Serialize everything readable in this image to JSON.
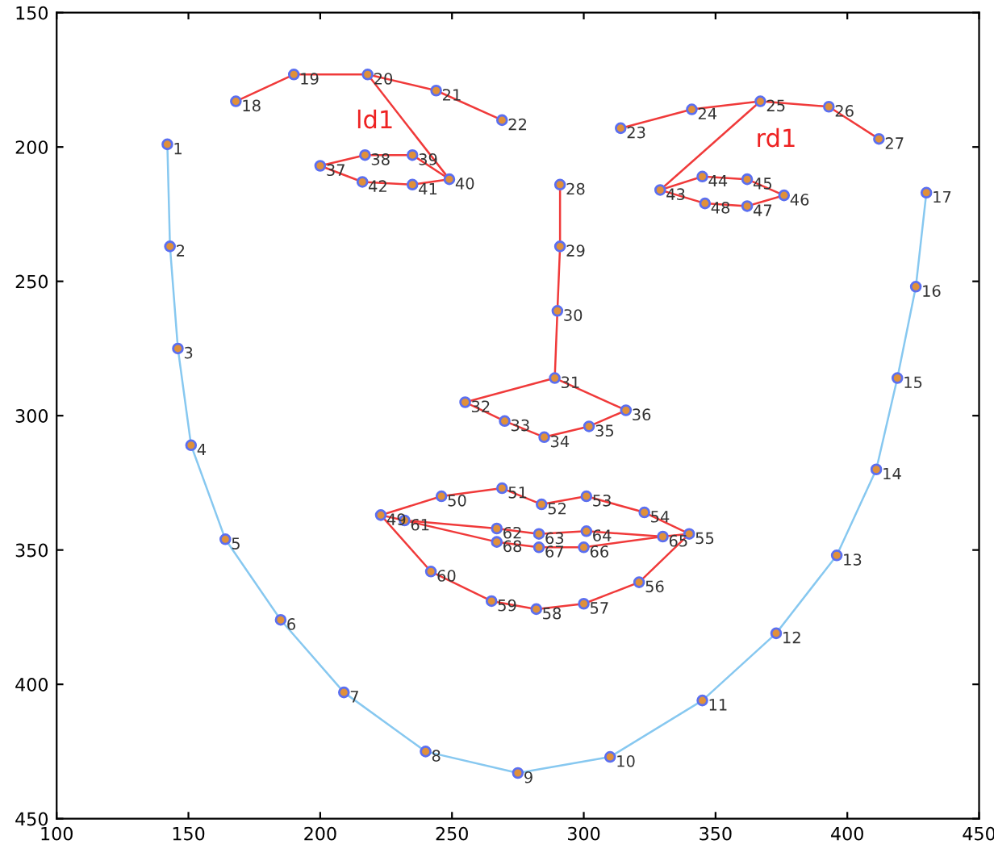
{
  "chart_data": {
    "type": "scatter",
    "xlim": [
      100,
      450
    ],
    "xticks": [
      100,
      150,
      200,
      250,
      300,
      350,
      400,
      450
    ],
    "ylim": [
      450,
      150
    ],
    "yticks": [
      150,
      200,
      250,
      300,
      350,
      400,
      450
    ],
    "grid": false,
    "annotations": [
      "ld1",
      "rd1",
      {
        "text": "1",
        "x": 142,
        "y": 199
      },
      {
        "text": "2",
        "x": 143,
        "y": 237
      },
      {
        "text": "3",
        "x": 146,
        "y": 275
      },
      {
        "text": "4",
        "x": 151,
        "y": 311
      },
      {
        "text": "5",
        "x": 164,
        "y": 346
      },
      {
        "text": "6",
        "x": 185,
        "y": 376
      },
      {
        "text": "7",
        "x": 209,
        "y": 403
      },
      {
        "text": "8",
        "x": 240,
        "y": 425
      },
      {
        "text": "9",
        "x": 275,
        "y": 433
      },
      {
        "text": "10",
        "x": 310,
        "y": 427
      },
      {
        "text": "11",
        "x": 345,
        "y": 406
      },
      {
        "text": "12",
        "x": 373,
        "y": 381
      },
      {
        "text": "13",
        "x": 396,
        "y": 352
      },
      {
        "text": "14",
        "x": 411,
        "y": 320
      },
      {
        "text": "15",
        "x": 419,
        "y": 286
      },
      {
        "text": "16",
        "x": 426,
        "y": 252
      },
      {
        "text": "17",
        "x": 430,
        "y": 217
      },
      {
        "text": "18",
        "x": 168,
        "y": 183
      },
      {
        "text": "19",
        "x": 190,
        "y": 173
      },
      {
        "text": "20",
        "x": 218,
        "y": 173
      },
      {
        "text": "21",
        "x": 244,
        "y": 179
      },
      {
        "text": "22",
        "x": 269,
        "y": 190
      },
      {
        "text": "23",
        "x": 314,
        "y": 193
      },
      {
        "text": "24",
        "x": 341,
        "y": 186
      },
      {
        "text": "25",
        "x": 367,
        "y": 183
      },
      {
        "text": "26",
        "x": 393,
        "y": 185
      },
      {
        "text": "27",
        "x": 412,
        "y": 197
      },
      {
        "text": "28",
        "x": 291,
        "y": 214
      },
      {
        "text": "29",
        "x": 291,
        "y": 237
      },
      {
        "text": "30",
        "x": 290,
        "y": 261
      },
      {
        "text": "31",
        "x": 289,
        "y": 286
      },
      {
        "text": "32",
        "x": 255,
        "y": 295
      },
      {
        "text": "33",
        "x": 270,
        "y": 302
      },
      {
        "text": "34",
        "x": 285,
        "y": 308
      },
      {
        "text": "35",
        "x": 302,
        "y": 304
      },
      {
        "text": "36",
        "x": 316,
        "y": 298
      },
      {
        "text": "37",
        "x": 200,
        "y": 207
      },
      {
        "text": "38",
        "x": 217,
        "y": 203
      },
      {
        "text": "39",
        "x": 235,
        "y": 203
      },
      {
        "text": "40",
        "x": 249,
        "y": 212
      },
      {
        "text": "41",
        "x": 235,
        "y": 214
      },
      {
        "text": "42",
        "x": 216,
        "y": 213
      },
      {
        "text": "43",
        "x": 329,
        "y": 216
      },
      {
        "text": "44",
        "x": 345,
        "y": 211
      },
      {
        "text": "45",
        "x": 362,
        "y": 212
      },
      {
        "text": "46",
        "x": 376,
        "y": 218
      },
      {
        "text": "47",
        "x": 362,
        "y": 222
      },
      {
        "text": "48",
        "x": 346,
        "y": 221
      },
      {
        "text": "49",
        "x": 223,
        "y": 337
      },
      {
        "text": "50",
        "x": 246,
        "y": 330
      },
      {
        "text": "51",
        "x": 269,
        "y": 327
      },
      {
        "text": "52",
        "x": 284,
        "y": 333
      },
      {
        "text": "53",
        "x": 301,
        "y": 330
      },
      {
        "text": "54",
        "x": 323,
        "y": 336
      },
      {
        "text": "55",
        "x": 340,
        "y": 344
      },
      {
        "text": "56",
        "x": 321,
        "y": 362
      },
      {
        "text": "57",
        "x": 300,
        "y": 370
      },
      {
        "text": "58",
        "x": 282,
        "y": 372
      },
      {
        "text": "59",
        "x": 265,
        "y": 369
      },
      {
        "text": "60",
        "x": 242,
        "y": 358
      },
      {
        "text": "61",
        "x": 232,
        "y": 339
      },
      {
        "text": "62",
        "x": 267,
        "y": 342
      },
      {
        "text": "63",
        "x": 283,
        "y": 344
      },
      {
        "text": "64",
        "x": 301,
        "y": 343
      },
      {
        "text": "65",
        "x": 330,
        "y": 345
      },
      {
        "text": "66",
        "x": 300,
        "y": 349
      },
      {
        "text": "67",
        "x": 283,
        "y": 349
      },
      {
        "text": "68",
        "x": 267,
        "y": 347
      }
    ],
    "series": [
      {
        "type": "line",
        "color": "#87c8f0",
        "x": [
          142,
          143,
          146,
          151,
          164,
          185,
          209,
          240,
          275,
          310,
          345,
          373,
          396,
          411,
          419,
          426,
          430
        ],
        "values": [
          199,
          237,
          275,
          311,
          346,
          376,
          403,
          425,
          433,
          427,
          406,
          381,
          352,
          320,
          286,
          252,
          217
        ]
      },
      {
        "type": "line",
        "color": "#f03a3a",
        "x": [
          168,
          190,
          218,
          244,
          269
        ],
        "values": [
          183,
          173,
          173,
          179,
          190
        ]
      },
      {
        "type": "line",
        "color": "#f03a3a",
        "x": [
          314,
          341,
          367,
          393,
          412
        ],
        "values": [
          193,
          186,
          183,
          185,
          197
        ]
      },
      {
        "type": "line",
        "color": "#f03a3a",
        "x": [
          218,
          249
        ],
        "values": [
          173,
          212
        ]
      },
      {
        "type": "line",
        "color": "#f03a3a",
        "x": [
          329,
          367
        ],
        "values": [
          216,
          183
        ]
      },
      {
        "type": "line",
        "color": "#f03a3a",
        "x": [
          291,
          291,
          290,
          289
        ],
        "values": [
          214,
          237,
          261,
          286
        ]
      },
      {
        "type": "line",
        "color": "#f03a3a",
        "x": [
          255,
          289,
          316
        ],
        "values": [
          295,
          286,
          298
        ]
      },
      {
        "type": "line",
        "color": "#f03a3a",
        "x": [
          255,
          270,
          285,
          302,
          316
        ],
        "values": [
          295,
          302,
          308,
          304,
          298
        ]
      },
      {
        "type": "line",
        "color": "#f03a3a",
        "x": [
          200,
          217,
          235,
          249
        ],
        "values": [
          207,
          203,
          203,
          212
        ]
      },
      {
        "type": "line",
        "color": "#f03a3a",
        "x": [
          200,
          216,
          235,
          249
        ],
        "values": [
          207,
          213,
          214,
          212
        ]
      },
      {
        "type": "line",
        "color": "#f03a3a",
        "x": [
          329,
          345,
          362,
          376
        ],
        "values": [
          216,
          211,
          212,
          218
        ]
      },
      {
        "type": "line",
        "color": "#f03a3a",
        "x": [
          329,
          346,
          362,
          376
        ],
        "values": [
          216,
          221,
          222,
          218
        ]
      },
      {
        "type": "line",
        "color": "#f03a3a",
        "x": [
          223,
          246,
          269,
          284,
          301,
          323,
          340
        ],
        "values": [
          337,
          330,
          327,
          333,
          330,
          336,
          344
        ]
      },
      {
        "type": "line",
        "color": "#f03a3a",
        "x": [
          223,
          242,
          265,
          282,
          300,
          321,
          340
        ],
        "values": [
          337,
          358,
          369,
          372,
          370,
          362,
          344
        ]
      },
      {
        "type": "line",
        "color": "#f03a3a",
        "x": [
          223,
          232,
          267,
          283,
          301,
          330,
          340
        ],
        "values": [
          337,
          339,
          342,
          344,
          343,
          345,
          344
        ]
      },
      {
        "type": "line",
        "color": "#f03a3a",
        "x": [
          232,
          267,
          283,
          300,
          330
        ],
        "values": [
          339,
          347,
          349,
          349,
          345
        ]
      },
      {
        "color": "#5b6ff0",
        "marker": "circle",
        "x": [
          142,
          143,
          146,
          151,
          164,
          185,
          209,
          240,
          275,
          310,
          345,
          373,
          396,
          411,
          419,
          426,
          430,
          168,
          190,
          218,
          244,
          269,
          314,
          341,
          367,
          393,
          412,
          291,
          291,
          290,
          289,
          255,
          270,
          285,
          302,
          316,
          200,
          217,
          235,
          249,
          235,
          216,
          329,
          345,
          362,
          376,
          362,
          346,
          223,
          246,
          269,
          284,
          301,
          323,
          340,
          321,
          300,
          282,
          265,
          242,
          232,
          267,
          283,
          301,
          330,
          300,
          283,
          267
        ],
        "values": [
          199,
          237,
          275,
          311,
          346,
          376,
          403,
          425,
          433,
          427,
          406,
          381,
          352,
          320,
          286,
          252,
          217,
          183,
          173,
          173,
          179,
          190,
          193,
          186,
          183,
          185,
          197,
          214,
          237,
          261,
          286,
          295,
          302,
          308,
          304,
          298,
          207,
          203,
          203,
          212,
          214,
          213,
          216,
          211,
          212,
          218,
          222,
          221,
          337,
          330,
          327,
          333,
          330,
          336,
          344,
          362,
          370,
          372,
          369,
          358,
          339,
          342,
          344,
          343,
          345,
          349,
          349,
          347
        ]
      }
    ]
  }
}
